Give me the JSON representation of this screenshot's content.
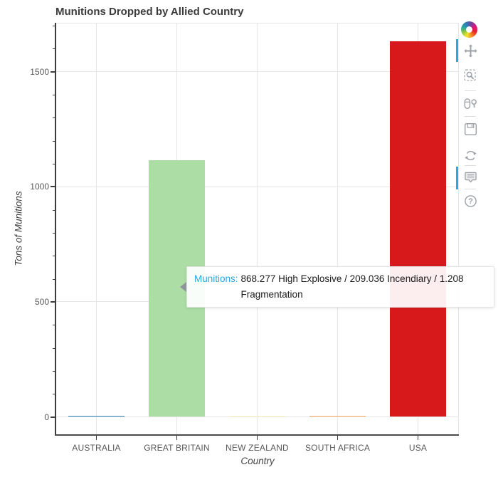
{
  "title": "Munitions Dropped by Allied Country",
  "chart_data": {
    "type": "bar",
    "title": "Munitions Dropped by Allied Country",
    "xlabel": "Country",
    "ylabel": "Tons of Munitions",
    "categories": [
      "AUSTRALIA",
      "GREAT BRITAIN",
      "NEW ZEALAND",
      "SOUTH AFRICA",
      "USA"
    ],
    "values": [
      5,
      1115,
      3,
      4,
      1632
    ],
    "bar_colors": [
      "#2b83ba",
      "#abdda4",
      "#ffffbf",
      "#fdae61",
      "#d7191c"
    ],
    "yticks": [
      0,
      500,
      1000,
      1500
    ],
    "ytick_labels": [
      "0",
      "500",
      "1000",
      "1500"
    ],
    "ylim": [
      -80,
      1715
    ],
    "grid": true,
    "legend": "none"
  },
  "tooltip": {
    "label": "Munitions:",
    "label_color": "#26aae1",
    "value": "868.277 High Explosive / 209.036 Incendiary / 1.208 Fragmentation",
    "value_lines": [
      "868.277 High Explosive / 209.036 Incendiary / 1.208",
      "Fragmentation"
    ]
  },
  "toolbar": {
    "logo": "bokeh-logo",
    "active_color": "#26aae1",
    "help_glyph": "?",
    "tools": [
      {
        "name": "pan",
        "icon": "move-icon",
        "active": true
      },
      {
        "name": "box-zoom",
        "icon": "box-zoom-icon",
        "active": false
      },
      {
        "name": "wheel-zoom",
        "icon": "wheel-zoom-icon",
        "active": false
      },
      {
        "name": "save",
        "icon": "save-icon",
        "active": false
      },
      {
        "name": "reset",
        "icon": "reset-icon",
        "active": false
      },
      {
        "name": "hover",
        "icon": "hover-tooltip-icon",
        "active": true
      },
      {
        "name": "help",
        "icon": "help-icon",
        "active": false
      }
    ]
  }
}
